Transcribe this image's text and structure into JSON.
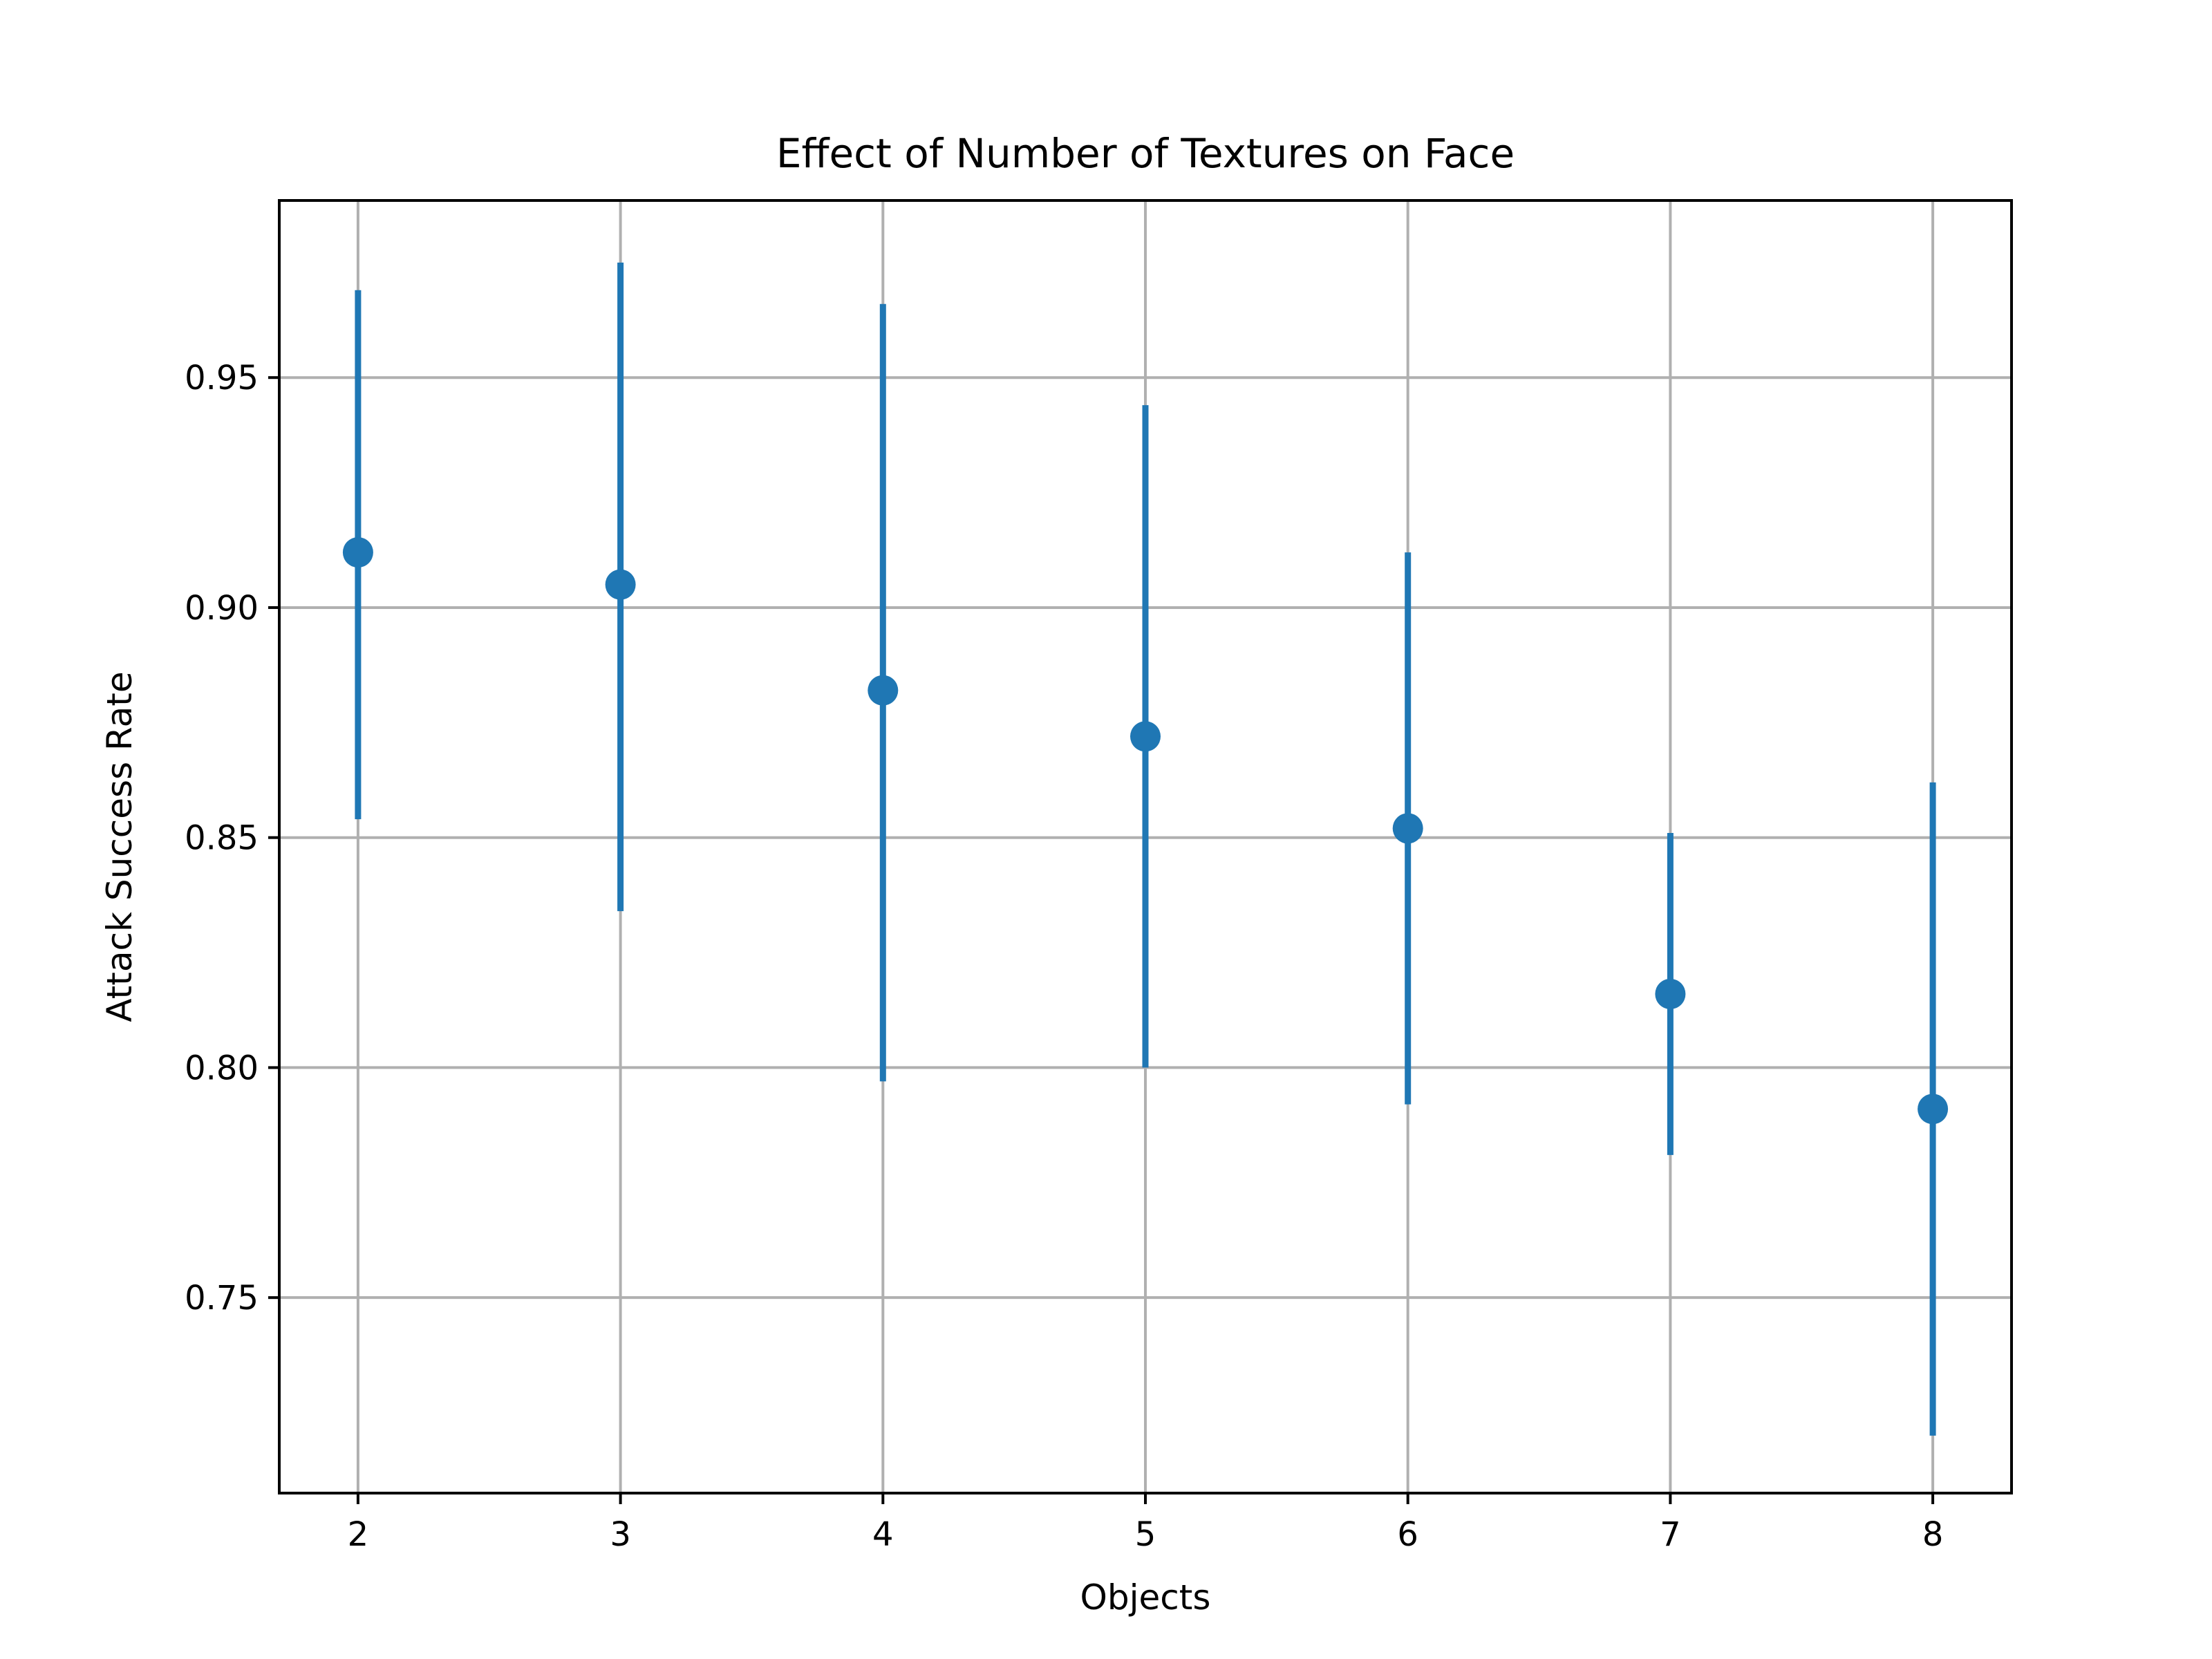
{
  "chart_data": {
    "type": "scatter",
    "title": "Effect of Number of Textures on Face",
    "xlabel": "Objects",
    "ylabel": "Attack Success Rate",
    "xlim": [
      1.7,
      8.3
    ],
    "ylim": [
      0.7075,
      0.9885
    ],
    "x_ticks": [
      2,
      3,
      4,
      5,
      6,
      7,
      8
    ],
    "y_ticks": [
      0.75,
      0.8,
      0.85,
      0.9,
      0.95
    ],
    "y_tick_labels": [
      "0.75",
      "0.80",
      "0.85",
      "0.90",
      "0.95"
    ],
    "grid": true,
    "color": "#1f77b4",
    "series": [
      {
        "x": [
          2,
          3,
          4,
          5,
          6,
          7,
          8
        ],
        "y": [
          0.912,
          0.905,
          0.882,
          0.872,
          0.852,
          0.816,
          0.791
        ],
        "err_low": [
          0.854,
          0.834,
          0.797,
          0.8,
          0.792,
          0.781,
          0.72
        ],
        "err_high": [
          0.969,
          0.975,
          0.966,
          0.944,
          0.912,
          0.851,
          0.862
        ]
      }
    ]
  }
}
